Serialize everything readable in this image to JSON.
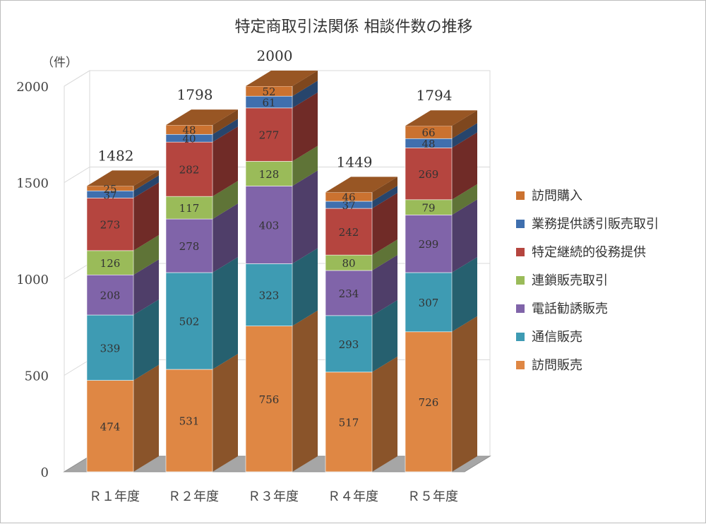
{
  "chart_data": {
    "type": "bar",
    "stacked": true,
    "title": "特定商取引法関係 相談件数の推移",
    "ylabel": "（件）",
    "ylim": [
      0,
      2000
    ],
    "yticks": [
      "0",
      "500",
      "1000",
      "1500",
      "2000"
    ],
    "grid": true,
    "legend_position": "right",
    "categories": [
      "Ｒ１年度",
      "Ｒ２年度",
      "Ｒ３年度",
      "Ｒ４年度",
      "Ｒ５年度"
    ],
    "totals": [
      1482,
      1798,
      2000,
      1449,
      1794
    ],
    "series": [
      {
        "name": "訪問販売",
        "color": "#DF8744",
        "values": [
          474,
          531,
          756,
          517,
          726
        ]
      },
      {
        "name": "通信販売",
        "color": "#3E9BB3",
        "values": [
          339,
          502,
          323,
          293,
          307
        ]
      },
      {
        "name": "電話勧誘販売",
        "color": "#8064A9",
        "values": [
          208,
          278,
          403,
          234,
          299
        ]
      },
      {
        "name": "連鎖販売取引",
        "color": "#9ABB59",
        "values": [
          126,
          117,
          128,
          80,
          79
        ]
      },
      {
        "name": "特定継続的役務提供",
        "color": "#B5453F",
        "values": [
          273,
          282,
          277,
          242,
          269
        ]
      },
      {
        "name": "業務提供誘引販売取引",
        "color": "#3F6FAE",
        "values": [
          37,
          40,
          61,
          37,
          48
        ]
      },
      {
        "name": "訪問購入",
        "color": "#CB7230",
        "values": [
          25,
          48,
          52,
          46,
          66
        ]
      }
    ]
  }
}
